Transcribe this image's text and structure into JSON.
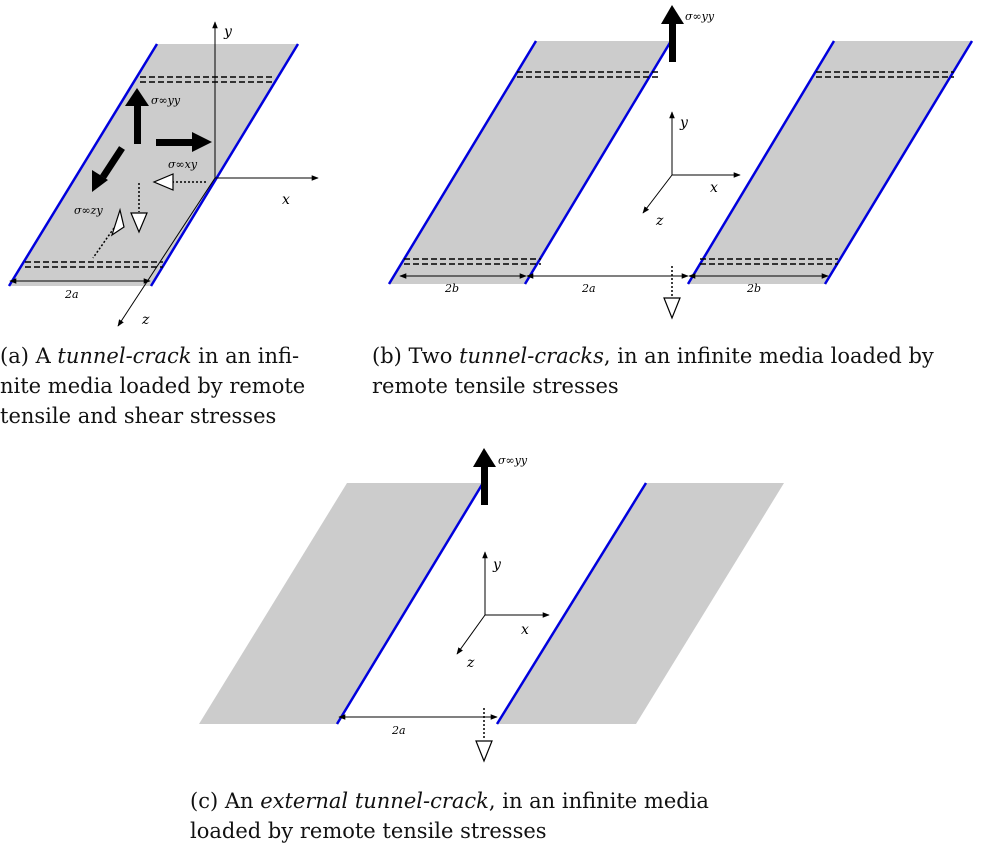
{
  "panel_a": {
    "axis_x": "x",
    "axis_y": "y",
    "axis_z": "z",
    "stress_yy": "σ∞yy",
    "stress_xy": "σ∞xy",
    "stress_zy": "σ∞zy",
    "width_label": "2a",
    "caption": {
      "prefix": "(a) A ",
      "emph": "tunnel-crack",
      "rest_1": " in an infi-",
      "line_2": "nite media loaded by remote",
      "line_3": "tensile and shear stresses"
    }
  },
  "panel_b": {
    "axis_x": "x",
    "axis_y": "y",
    "axis_z": "z",
    "stress_yy": "σ∞yy",
    "width_left": "2b",
    "width_gap": "2a",
    "width_right": "2b",
    "caption": {
      "prefix": "(b) Two ",
      "emph": "tunnel-cracks",
      "rest_1": ", in an infinite media loaded by",
      "line_2": "remote tensile stresses"
    }
  },
  "panel_c": {
    "axis_x": "x",
    "axis_y": "y",
    "axis_z": "z",
    "stress_yy": "σ∞yy",
    "width_gap": "2a",
    "caption": {
      "prefix": "(c) An ",
      "emph": "external tunnel-crack",
      "rest_1": ", in an infinite media",
      "line_2": "loaded by remote tensile stresses"
    }
  },
  "colors": {
    "band": "#cccccc",
    "crack_edge": "#0000dd",
    "ink": "#000000"
  }
}
